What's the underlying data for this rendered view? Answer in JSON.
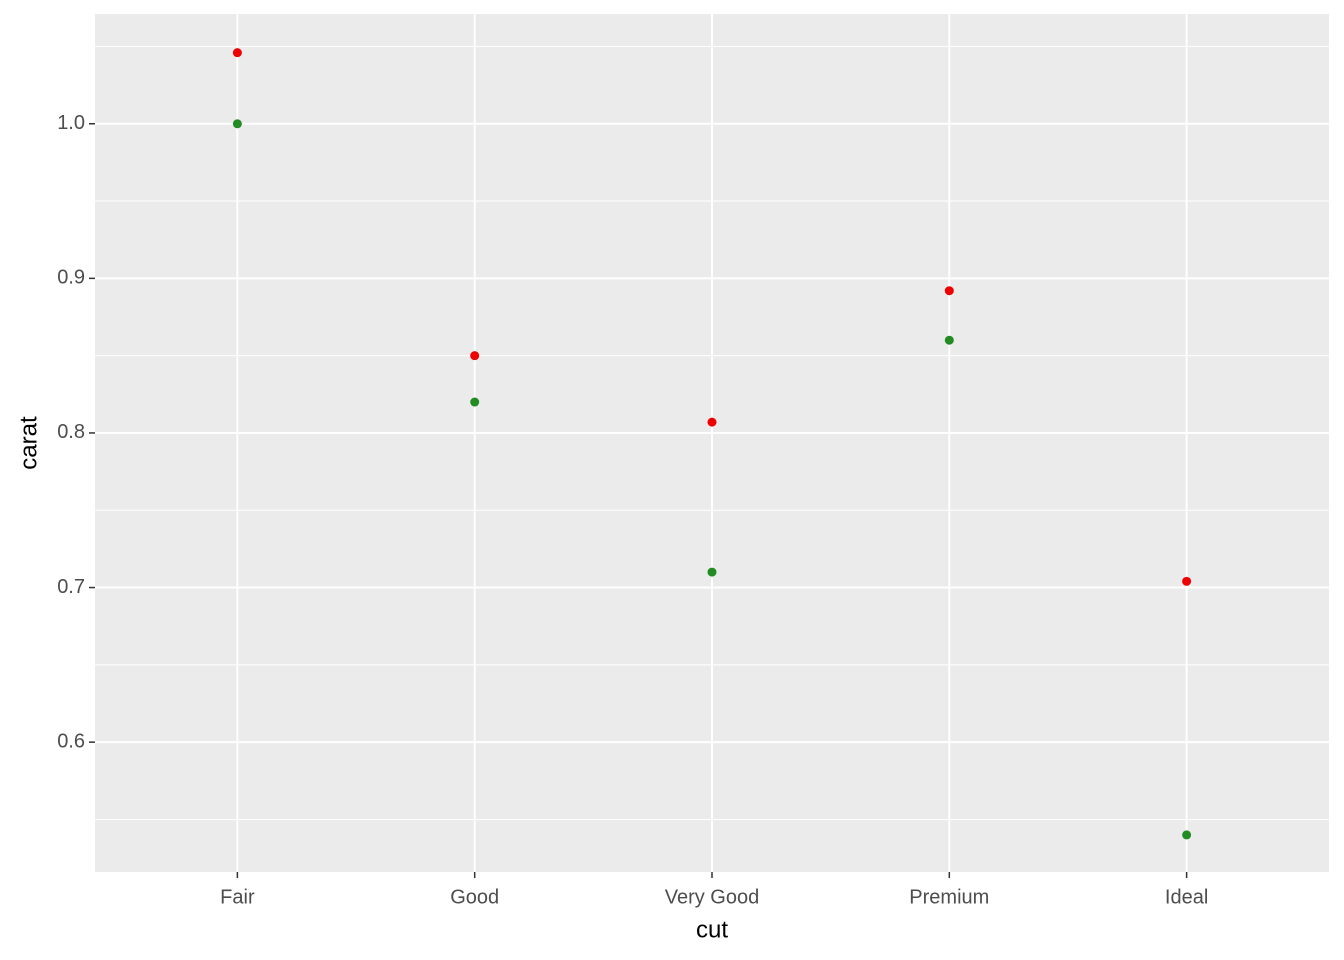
{
  "chart_data": {
    "type": "scatter",
    "x_label": "cut",
    "y_label": "carat",
    "categories": [
      "Fair",
      "Good",
      "Very Good",
      "Premium",
      "Ideal"
    ],
    "series": [
      {
        "color": "#ee0000",
        "values": [
          1.046,
          0.85,
          0.807,
          0.892,
          0.704
        ]
      },
      {
        "color": "#228b22",
        "values": [
          1.0,
          0.82,
          0.71,
          0.86,
          0.54
        ]
      }
    ],
    "ylim": [
      0.516,
      1.071
    ],
    "yticks": [
      0.6,
      0.7,
      0.8,
      0.9,
      {
        "value": 1.0,
        "label": "1.0"
      }
    ],
    "minor_yticks": [
      0.55,
      0.65,
      0.75,
      0.85,
      0.95,
      1.05
    ],
    "grid": true
  }
}
